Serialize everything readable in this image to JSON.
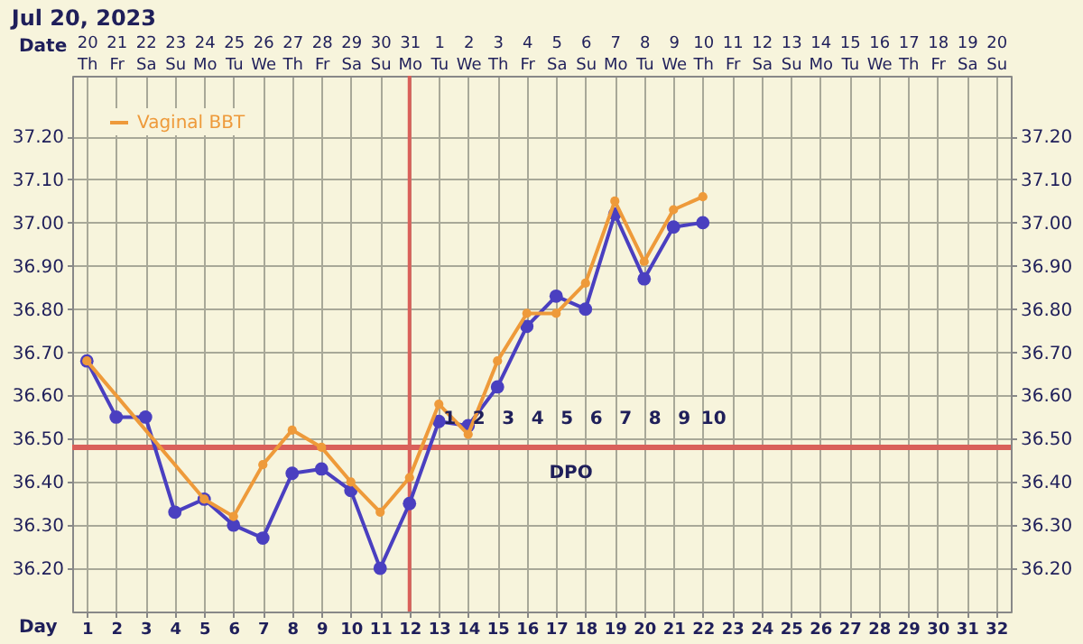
{
  "chart_data": {
    "type": "line",
    "title": "Jul 20, 2023",
    "xlabel": "Day",
    "x2label": "Date",
    "xlim": [
      0.5,
      32.5
    ],
    "xticks": [
      1,
      2,
      3,
      4,
      5,
      6,
      7,
      8,
      9,
      10,
      11,
      12,
      13,
      14,
      15,
      16,
      17,
      18,
      19,
      20,
      21,
      22,
      23,
      24,
      25,
      26,
      27,
      28,
      29,
      30,
      31,
      32
    ],
    "x2lim": [
      "2023-07-19T12:00",
      "2023-08-20T12:00"
    ],
    "x2ticks": [
      {
        "value": "2023-07-20",
        "label": "20 Th"
      },
      {
        "value": "2023-07-21",
        "label": "21 Fr"
      },
      {
        "value": "2023-07-22",
        "label": "22 Sa"
      },
      {
        "value": "2023-07-23",
        "label": "23 Su"
      },
      {
        "value": "2023-07-24",
        "label": "24 Mo"
      },
      {
        "value": "2023-07-25",
        "label": "25 Tu"
      },
      {
        "value": "2023-07-26",
        "label": "26 We"
      },
      {
        "value": "2023-07-27",
        "label": "27 Th"
      },
      {
        "value": "2023-07-28",
        "label": "28 Fr"
      },
      {
        "value": "2023-07-29",
        "label": "29 Sa"
      },
      {
        "value": "2023-07-30",
        "label": "30 Su"
      },
      {
        "value": "2023-07-31",
        "label": "31 Mo"
      },
      {
        "value": "2023-08-01",
        "label": "1 Tu"
      },
      {
        "value": "2023-08-02",
        "label": "2 We"
      },
      {
        "value": "2023-08-03",
        "label": "3 Th"
      },
      {
        "value": "2023-08-04",
        "label": "4 Fr"
      },
      {
        "value": "2023-08-05",
        "label": "5 Sa"
      },
      {
        "value": "2023-08-06",
        "label": "6 Su"
      },
      {
        "value": "2023-08-07",
        "label": "7 Mo"
      },
      {
        "value": "2023-08-08",
        "label": "8 Tu"
      },
      {
        "value": "2023-08-09",
        "label": "9 We"
      },
      {
        "value": "2023-08-10",
        "label": "10 Th"
      },
      {
        "value": "2023-08-11",
        "label": "11 Fr"
      },
      {
        "value": "2023-08-12",
        "label": "12 Sa"
      },
      {
        "value": "2023-08-13",
        "label": "13 Su"
      },
      {
        "value": "2023-08-14",
        "label": "14 Mo"
      },
      {
        "value": "2023-08-15",
        "label": "15 Tu"
      },
      {
        "value": "2023-08-16",
        "label": "16 We"
      },
      {
        "value": "2023-08-17",
        "label": "17 Th"
      },
      {
        "value": "2023-08-18",
        "label": "18 Fr"
      },
      {
        "value": "2023-08-19",
        "label": "19 Sa"
      },
      {
        "value": "2023-08-20",
        "label": "20 Su"
      }
    ],
    "ylim": [
      36.1,
      37.34
    ],
    "yticks": [
      {
        "value": 36.2,
        "label": "36.20"
      },
      {
        "value": 36.3,
        "label": "36.30"
      },
      {
        "value": 36.4,
        "label": "36.40"
      },
      {
        "value": 36.5,
        "label": "36.50"
      },
      {
        "value": 36.6,
        "label": "36.60"
      },
      {
        "value": 36.7,
        "label": "36.70"
      },
      {
        "value": 36.8,
        "label": "36.80"
      },
      {
        "value": 36.9,
        "label": "36.90"
      },
      {
        "value": 37.0,
        "label": "37.00"
      },
      {
        "value": 37.1,
        "label": "37.10"
      },
      {
        "value": 37.2,
        "label": "37.20"
      }
    ],
    "y2lim": [
      36.1,
      37.34
    ],
    "y2ticks": [
      {
        "value": 36.2,
        "label": "36.20"
      },
      {
        "value": 36.3,
        "label": "36.30"
      },
      {
        "value": 36.4,
        "label": "36.40"
      },
      {
        "value": 36.5,
        "label": "36.50"
      },
      {
        "value": 36.6,
        "label": "36.60"
      },
      {
        "value": 36.7,
        "label": "36.70"
      },
      {
        "value": 36.8,
        "label": "36.80"
      },
      {
        "value": 36.9,
        "label": "36.90"
      },
      {
        "value": 37.0,
        "label": "37.00"
      },
      {
        "value": 37.1,
        "label": "37.10"
      },
      {
        "value": 37.2,
        "label": "37.20"
      }
    ],
    "series": [
      {
        "name": "Vaginal BBT",
        "color": "#ee9a3a",
        "x": [
          1,
          5,
          6,
          7,
          8,
          9,
          10,
          11,
          12,
          13,
          14,
          15,
          16,
          17,
          18,
          19,
          20,
          21,
          22
        ],
        "values": [
          36.68,
          36.36,
          36.32,
          36.44,
          36.52,
          36.48,
          36.4,
          36.33,
          36.41,
          36.58,
          36.51,
          36.68,
          36.79,
          36.79,
          36.86,
          37.05,
          36.91,
          37.03,
          37.06
        ]
      },
      {
        "color": "#4a3fc0",
        "x": [
          1,
          2,
          3,
          4,
          5,
          6,
          7,
          8,
          9,
          10,
          11,
          12,
          13,
          14,
          15,
          16,
          17,
          18,
          19,
          20,
          21,
          22
        ],
        "values": [
          36.68,
          36.55,
          36.55,
          36.33,
          36.36,
          36.3,
          36.27,
          36.42,
          36.43,
          36.38,
          36.2,
          36.35,
          36.54,
          36.53,
          36.62,
          36.76,
          36.83,
          36.8,
          37.02,
          36.87,
          36.99,
          37.0
        ]
      }
    ],
    "marker": "circle",
    "line_style": "solid",
    "grid": true,
    "legend": "top left",
    "ref_lines": [
      {
        "axis": "x",
        "value": 12,
        "color": "#d9605a"
      },
      {
        "axis": "y",
        "value": 36.48,
        "color": "#d9605a"
      }
    ],
    "annotations": [
      "1",
      "2",
      "3",
      "4",
      "5",
      "6",
      "7",
      "8",
      "9",
      "10",
      "DPO"
    ]
  }
}
